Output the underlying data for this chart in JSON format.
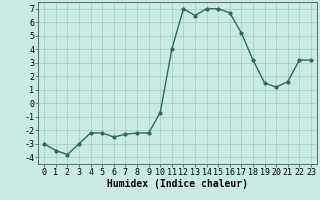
{
  "x": [
    0,
    1,
    2,
    3,
    4,
    5,
    6,
    7,
    8,
    9,
    10,
    11,
    12,
    13,
    14,
    15,
    16,
    17,
    18,
    19,
    20,
    21,
    22,
    23
  ],
  "y": [
    -3.0,
    -3.5,
    -3.8,
    -3.0,
    -2.2,
    -2.2,
    -2.5,
    -2.3,
    -2.2,
    -2.2,
    -0.7,
    4.0,
    7.0,
    6.5,
    7.0,
    7.0,
    6.7,
    5.2,
    3.2,
    1.5,
    1.2,
    1.6,
    3.2,
    3.2
  ],
  "line_color": "#2d6b5e",
  "marker": "o",
  "marker_size": 2.0,
  "line_width": 1.0,
  "xlabel": "Humidex (Indice chaleur)",
  "xlabel_fontsize": 7,
  "ylabel": "",
  "title": "",
  "xlim": [
    -0.5,
    23.5
  ],
  "ylim": [
    -4.5,
    7.5
  ],
  "yticks": [
    -4,
    -3,
    -2,
    -1,
    0,
    1,
    2,
    3,
    4,
    5,
    6,
    7
  ],
  "xticks": [
    0,
    1,
    2,
    3,
    4,
    5,
    6,
    7,
    8,
    9,
    10,
    11,
    12,
    13,
    14,
    15,
    16,
    17,
    18,
    19,
    20,
    21,
    22,
    23
  ],
  "bg_color": "#c8ece4",
  "grid_color": "#a0ccc4",
  "tick_fontsize": 6.0
}
